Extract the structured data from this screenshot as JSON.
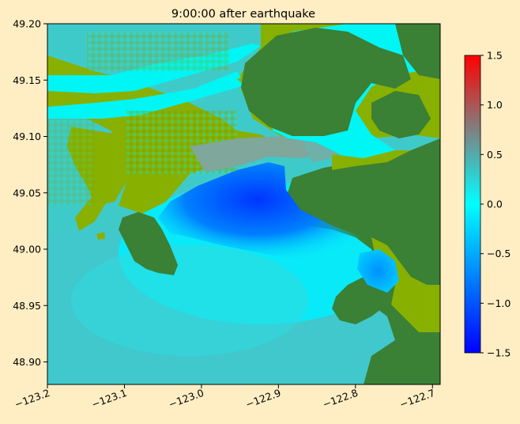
{
  "chart_data": {
    "type": "heatmap",
    "title": "9:00:00 after earthquake",
    "xlabel": "",
    "ylabel": "",
    "xlim": [
      -123.2,
      -122.69
    ],
    "ylim": [
      48.88,
      49.2
    ],
    "x_ticks": [
      -123.2,
      -123.1,
      -123.0,
      -122.9,
      -122.8,
      -122.7
    ],
    "x_tick_labels": [
      "−123.2",
      "−123.1",
      "−123.0",
      "−122.9",
      "−122.8",
      "−122.7"
    ],
    "y_ticks": [
      48.9,
      48.95,
      49.0,
      49.05,
      49.1,
      49.15,
      49.2
    ],
    "y_tick_labels": [
      "48.90",
      "48.95",
      "49.00",
      "49.05",
      "49.10",
      "49.15",
      "49.20"
    ],
    "colorbar": {
      "range": [
        -1.5,
        1.5
      ],
      "ticks": [
        -1.5,
        -1.0,
        -0.5,
        0.0,
        0.5,
        1.0,
        1.5
      ],
      "tick_labels": [
        "−1.5",
        "−1.0",
        "−0.5",
        "0.0",
        "0.5",
        "1.0",
        "1.5"
      ],
      "colors": [
        "#0000FF",
        "#00FFFF",
        "#808080",
        "#FF0000"
      ]
    },
    "land_colors": [
      "#88B000",
      "#3A8035"
    ],
    "background": "#FFEEC4",
    "grid": false
  }
}
